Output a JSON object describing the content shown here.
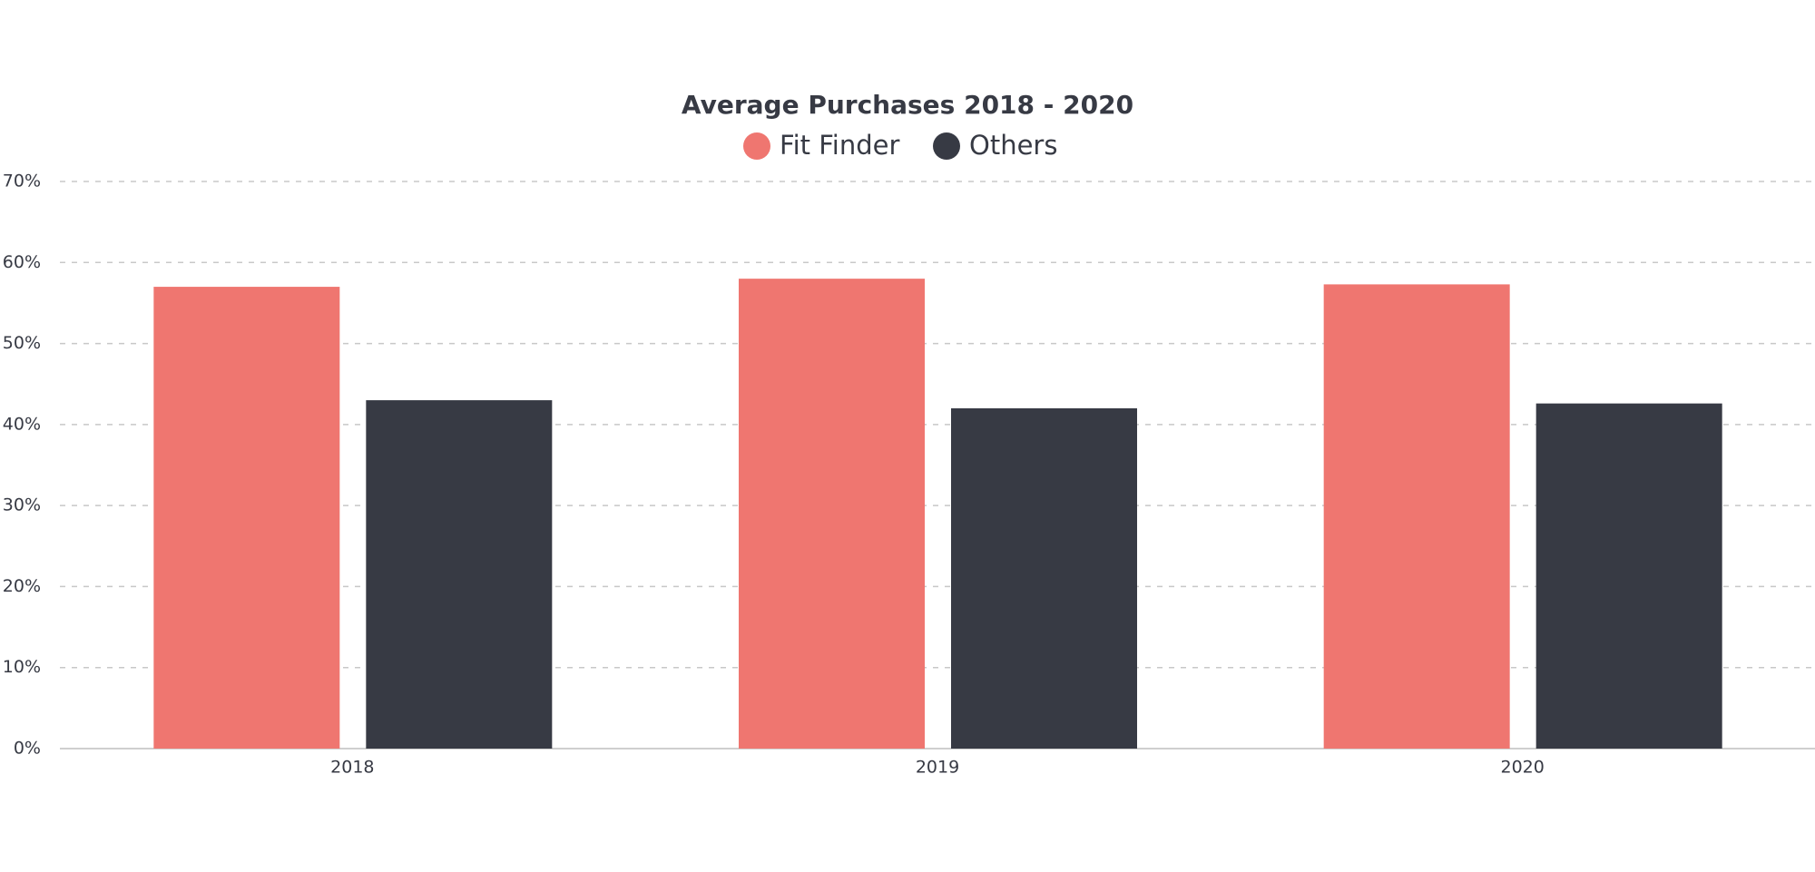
{
  "chart_data": {
    "type": "bar",
    "title": "Average Purchases 2018 - 2020",
    "categories": [
      "2018",
      "2019",
      "2020"
    ],
    "series": [
      {
        "name": "Fit Finder",
        "color": "#ef7670",
        "values": [
          57,
          58,
          57.3
        ]
      },
      {
        "name": "Others",
        "color": "#373a44",
        "values": [
          43,
          42,
          42.6
        ]
      }
    ],
    "ylim": [
      0,
      70
    ],
    "yticks": [
      {
        "value": 0,
        "label": "0%"
      },
      {
        "value": 10,
        "label": "10%"
      },
      {
        "value": 20,
        "label": "20%"
      },
      {
        "value": 30,
        "label": "30%"
      },
      {
        "value": 40,
        "label": "40%"
      },
      {
        "value": 50,
        "label": "50%"
      },
      {
        "value": 60,
        "label": "60%"
      },
      {
        "value": 70,
        "label": "70%"
      }
    ],
    "grid": true,
    "legend": "top"
  }
}
